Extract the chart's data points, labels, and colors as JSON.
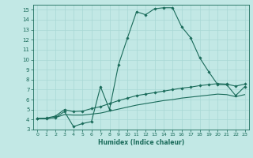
{
  "xlabel": "Humidex (Indice chaleur)",
  "xlim": [
    -0.5,
    23.5
  ],
  "ylim": [
    3,
    15.5
  ],
  "yticks": [
    3,
    4,
    5,
    6,
    7,
    8,
    9,
    10,
    11,
    12,
    13,
    14,
    15
  ],
  "xticks": [
    0,
    1,
    2,
    3,
    4,
    5,
    6,
    7,
    8,
    9,
    10,
    11,
    12,
    13,
    14,
    15,
    16,
    17,
    18,
    19,
    20,
    21,
    22,
    23
  ],
  "background_color": "#c2e8e5",
  "grid_color": "#a8d8d4",
  "line_color": "#1a6b5a",
  "lines": [
    {
      "x": [
        0,
        1,
        2,
        3,
        4,
        5,
        6,
        7,
        8,
        9,
        10,
        11,
        12,
        13,
        14,
        15,
        16,
        17,
        18,
        19,
        20,
        21,
        22,
        23
      ],
      "y": [
        4.1,
        4.1,
        4.2,
        4.8,
        3.3,
        3.6,
        3.8,
        7.3,
        5.0,
        9.5,
        12.2,
        14.8,
        14.5,
        15.1,
        15.2,
        15.2,
        13.3,
        12.2,
        10.2,
        8.8,
        7.5,
        7.5,
        6.4,
        7.3
      ],
      "marker": true
    },
    {
      "x": [
        0,
        1,
        2,
        3,
        4,
        5,
        6,
        7,
        8,
        9,
        10,
        11,
        12,
        13,
        14,
        15,
        16,
        17,
        18,
        19,
        20,
        21,
        22,
        23
      ],
      "y": [
        4.1,
        4.15,
        4.35,
        5.0,
        4.8,
        4.85,
        5.1,
        5.3,
        5.6,
        5.9,
        6.15,
        6.4,
        6.55,
        6.7,
        6.85,
        7.0,
        7.15,
        7.25,
        7.4,
        7.5,
        7.6,
        7.55,
        7.35,
        7.55
      ],
      "marker": true
    },
    {
      "x": [
        0,
        1,
        2,
        3,
        4,
        5,
        6,
        7,
        8,
        9,
        10,
        11,
        12,
        13,
        14,
        15,
        16,
        17,
        18,
        19,
        20,
        21,
        22,
        23
      ],
      "y": [
        4.1,
        4.1,
        4.2,
        4.5,
        4.45,
        4.45,
        4.55,
        4.65,
        4.85,
        5.05,
        5.25,
        5.45,
        5.6,
        5.75,
        5.9,
        6.0,
        6.15,
        6.25,
        6.35,
        6.45,
        6.55,
        6.5,
        6.3,
        6.5
      ],
      "marker": false
    }
  ]
}
